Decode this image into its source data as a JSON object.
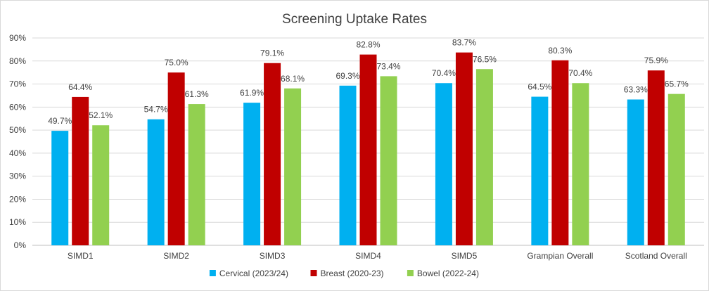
{
  "chart_data": {
    "type": "bar",
    "title": "Screening Uptake Rates",
    "xlabel": "",
    "ylabel": "",
    "ylim": [
      0,
      90
    ],
    "y_tick_step": 10,
    "y_tick_format": "percent",
    "grid": true,
    "legend_position": "bottom",
    "categories": [
      "SIMD1",
      "SIMD2",
      "SIMD3",
      "SIMD4",
      "SIMD5",
      "Grampian Overall",
      "Scotland Overall"
    ],
    "series": [
      {
        "name": "Cervical (2023/24)",
        "color": "#00b0f0",
        "values": [
          49.7,
          54.7,
          61.9,
          69.3,
          70.4,
          64.5,
          63.3
        ]
      },
      {
        "name": "Breast  (2020-23)",
        "color": "#c00000",
        "values": [
          64.4,
          75.0,
          79.1,
          82.8,
          83.7,
          80.3,
          75.9
        ]
      },
      {
        "name": "Bowel  (2022-24)",
        "color": "#92d050",
        "values": [
          52.1,
          61.3,
          68.1,
          73.4,
          76.5,
          70.4,
          65.7
        ]
      }
    ]
  }
}
